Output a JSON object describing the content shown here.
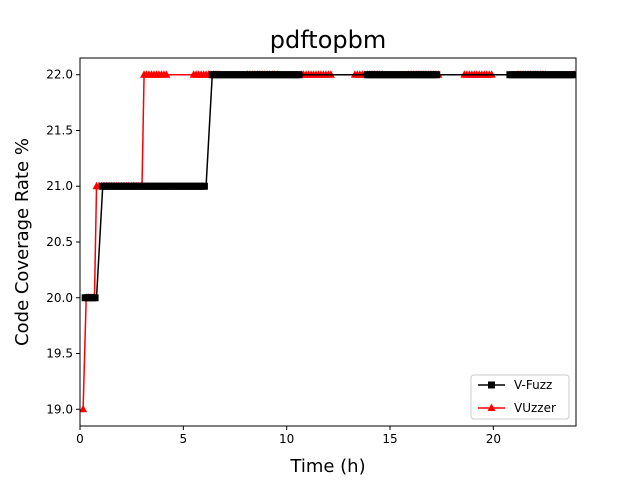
{
  "chart_data": {
    "type": "line",
    "title": "pdftopbm",
    "xlabel": "Time (h)",
    "ylabel": "Code Coverage Rate %",
    "xlim": [
      0,
      24
    ],
    "ylim": [
      18.85,
      22.15
    ],
    "xticks": [
      0,
      5,
      10,
      15,
      20
    ],
    "yticks": [
      19.0,
      19.5,
      20.0,
      20.5,
      21.0,
      21.5,
      22.0
    ],
    "xtick_labels": [
      "0",
      "5",
      "10",
      "15",
      "20"
    ],
    "ytick_labels": [
      "19.0",
      "19.5",
      "20.0",
      "20.5",
      "21.0",
      "21.5",
      "22.0"
    ],
    "legend_position": "lower-right",
    "series": [
      {
        "name": "V-Fuzz",
        "color": "#000000",
        "marker": "square",
        "segments": [
          {
            "type": "line",
            "points": [
              [
                0.25,
                20.0
              ],
              [
                0.8,
                20.0
              ],
              [
                1.1,
                21.0
              ],
              [
                6.1,
                21.0
              ],
              [
                6.4,
                22.0
              ],
              [
                24.0,
                22.0
              ]
            ]
          },
          {
            "type": "markers",
            "y": 20.0,
            "x_start": 0.25,
            "x_end": 0.8,
            "step": 0.12
          },
          {
            "type": "markers",
            "y": 21.0,
            "x_start": 1.1,
            "x_end": 6.1,
            "step": 0.12
          },
          {
            "type": "markers",
            "y": 22.0,
            "x_start": 6.4,
            "x_end": 10.6,
            "step": 0.12
          },
          {
            "type": "markers",
            "y": 22.0,
            "x_start": 13.9,
            "x_end": 17.3,
            "step": 0.12
          },
          {
            "type": "markers",
            "y": 22.0,
            "x_start": 20.8,
            "x_end": 24.0,
            "step": 0.12
          }
        ]
      },
      {
        "name": "VUzzer",
        "color": "#ff0000",
        "marker": "triangle",
        "segments": [
          {
            "type": "line",
            "points": [
              [
                0.15,
                19.0
              ],
              [
                0.3,
                20.0
              ],
              [
                0.7,
                20.0
              ],
              [
                0.8,
                21.0
              ],
              [
                3.0,
                21.0
              ],
              [
                3.1,
                22.0
              ],
              [
                24.0,
                22.0
              ]
            ]
          },
          {
            "type": "markers",
            "y": 19.0,
            "x_start": 0.15,
            "x_end": 0.15,
            "step": 1
          },
          {
            "type": "markers",
            "y": 20.0,
            "x_start": 0.3,
            "x_end": 0.7,
            "step": 0.12
          },
          {
            "type": "markers",
            "y": 21.0,
            "x_start": 0.8,
            "x_end": 3.0,
            "step": 0.12
          },
          {
            "type": "markers",
            "y": 22.0,
            "x_start": 3.1,
            "x_end": 4.2,
            "step": 0.12
          },
          {
            "type": "markers",
            "y": 22.0,
            "x_start": 5.5,
            "x_end": 6.8,
            "step": 0.12
          },
          {
            "type": "markers",
            "y": 22.0,
            "x_start": 8.1,
            "x_end": 9.6,
            "step": 0.12
          },
          {
            "type": "markers",
            "y": 22.0,
            "x_start": 10.7,
            "x_end": 12.2,
            "step": 0.12
          },
          {
            "type": "markers",
            "y": 22.0,
            "x_start": 13.3,
            "x_end": 14.7,
            "step": 0.12
          },
          {
            "type": "markers",
            "y": 22.0,
            "x_start": 15.9,
            "x_end": 17.4,
            "step": 0.12
          },
          {
            "type": "markers",
            "y": 22.0,
            "x_start": 18.6,
            "x_end": 20.0,
            "step": 0.12
          },
          {
            "type": "markers",
            "y": 22.0,
            "x_start": 21.2,
            "x_end": 22.6,
            "step": 0.12
          },
          {
            "type": "markers",
            "y": 22.0,
            "x_start": 23.9,
            "x_end": 23.9,
            "step": 1
          }
        ]
      }
    ]
  }
}
